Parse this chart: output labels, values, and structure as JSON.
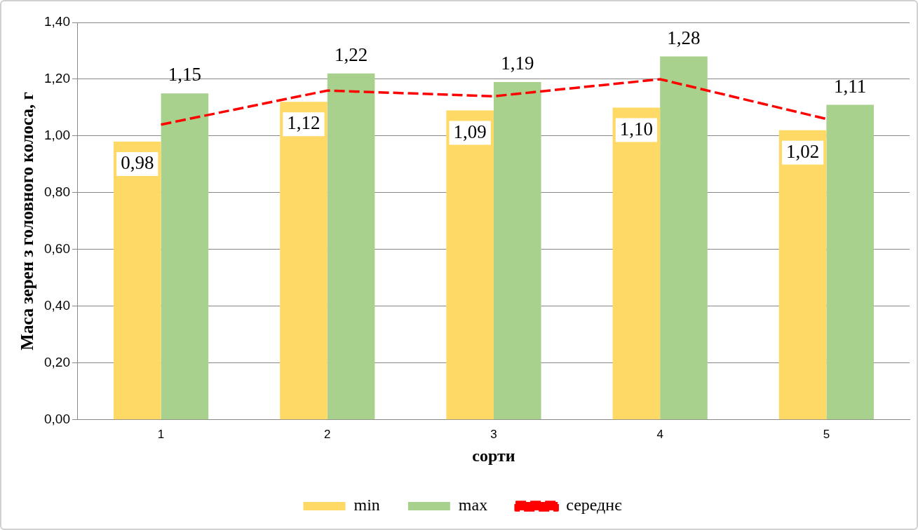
{
  "chart_data": {
    "type": "bar",
    "xlabel": "сорти",
    "ylabel": "Маса зерен з головного колоса, г",
    "categories": [
      "1",
      "2",
      "3",
      "4",
      "5"
    ],
    "series": [
      {
        "name": "min",
        "color": "#ffd966",
        "values": [
          0.98,
          1.12,
          1.09,
          1.1,
          1.02
        ],
        "value_labels": [
          "0,98",
          "1,12",
          "1,09",
          "1,10",
          "1,02"
        ]
      },
      {
        "name": "max",
        "color": "#a9d18e",
        "values": [
          1.15,
          1.22,
          1.19,
          1.28,
          1.11
        ],
        "value_labels": [
          "1,15",
          "1,22",
          "1,19",
          "1,28",
          "1,11"
        ]
      },
      {
        "name": "середнє",
        "type": "line",
        "color": "#ff0000",
        "line_style": "dashed",
        "values": [
          1.04,
          1.16,
          1.14,
          1.2,
          1.06
        ]
      }
    ],
    "ylim": [
      0,
      1.4
    ],
    "yticks": [
      {
        "value": 0,
        "label": "0,00"
      },
      {
        "value": 0.2,
        "label": "0,20"
      },
      {
        "value": 0.4,
        "label": "0,40"
      },
      {
        "value": 0.6,
        "label": "0,60"
      },
      {
        "value": 0.8,
        "label": "0,80"
      },
      {
        "value": 1,
        "label": "1,00"
      },
      {
        "value": 1.2,
        "label": "1,20"
      },
      {
        "value": 1.4,
        "label": "1,40"
      }
    ],
    "grid": "y",
    "legend": "bottom",
    "marker": "none"
  }
}
